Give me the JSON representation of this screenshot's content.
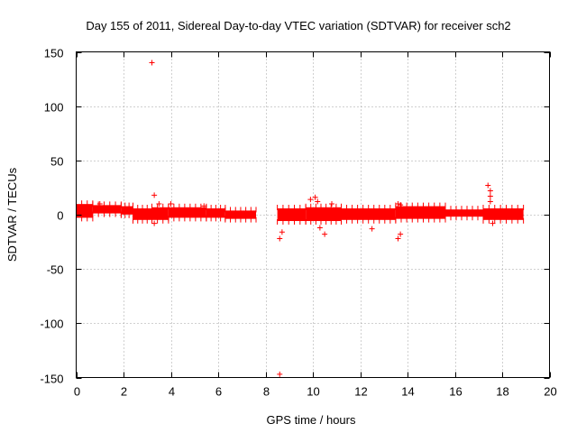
{
  "chart_data": {
    "type": "scatter",
    "title": "Day 155 of 2011, Sidereal Day-to-day VTEC variation (SDTVAR) for receiver sch2",
    "xlabel": "GPS time / hours",
    "ylabel": "SDTVAR / TECUs",
    "xlim": [
      0,
      20
    ],
    "ylim": [
      -150,
      150
    ],
    "xticks": [
      "0",
      "2",
      "4",
      "6",
      "8",
      "10",
      "12",
      "14",
      "16",
      "18",
      "20"
    ],
    "yticks": [
      "150",
      "100",
      "50",
      "0",
      "-50",
      "-100",
      "-150"
    ],
    "grid": true,
    "marker": "plus",
    "series_color": "#ff0000",
    "bands": [
      {
        "x_start": 0.0,
        "x_end": 0.7,
        "y_low": -2,
        "y_high": 9
      },
      {
        "x_start": 0.7,
        "x_end": 1.9,
        "y_low": 2,
        "y_high": 8
      },
      {
        "x_start": 1.9,
        "x_end": 2.4,
        "y_low": 1,
        "y_high": 7
      },
      {
        "x_start": 2.4,
        "x_end": 3.2,
        "y_low": -4,
        "y_high": 5
      },
      {
        "x_start": 3.2,
        "x_end": 3.9,
        "y_low": -4,
        "y_high": 6
      },
      {
        "x_start": 3.9,
        "x_end": 5.5,
        "y_low": -2,
        "y_high": 6
      },
      {
        "x_start": 5.5,
        "x_end": 6.3,
        "y_low": -2,
        "y_high": 5
      },
      {
        "x_start": 6.3,
        "x_end": 7.6,
        "y_low": -3,
        "y_high": 3
      },
      {
        "x_start": 8.5,
        "x_end": 9.7,
        "y_low": -5,
        "y_high": 5
      },
      {
        "x_start": 9.7,
        "x_end": 11.2,
        "y_low": -5,
        "y_high": 6
      },
      {
        "x_start": 11.2,
        "x_end": 13.5,
        "y_low": -4,
        "y_high": 5
      },
      {
        "x_start": 13.5,
        "x_end": 15.6,
        "y_low": -3,
        "y_high": 7
      },
      {
        "x_start": 15.6,
        "x_end": 17.2,
        "y_low": -1,
        "y_high": 4
      },
      {
        "x_start": 17.2,
        "x_end": 18.9,
        "y_low": -4,
        "y_high": 5
      }
    ],
    "outliers": [
      {
        "x": 3.2,
        "y": 140
      },
      {
        "x": 8.6,
        "y": -147
      },
      {
        "x": 3.3,
        "y": 18
      },
      {
        "x": 3.3,
        "y": -8
      },
      {
        "x": 3.5,
        "y": 10
      },
      {
        "x": 4.0,
        "y": 10
      },
      {
        "x": 1.0,
        "y": 10
      },
      {
        "x": 8.6,
        "y": -22
      },
      {
        "x": 8.7,
        "y": -16
      },
      {
        "x": 9.9,
        "y": 14
      },
      {
        "x": 10.1,
        "y": 16
      },
      {
        "x": 10.2,
        "y": 12
      },
      {
        "x": 10.3,
        "y": -12
      },
      {
        "x": 10.5,
        "y": -18
      },
      {
        "x": 10.8,
        "y": 10
      },
      {
        "x": 12.5,
        "y": -13
      },
      {
        "x": 13.6,
        "y": 10
      },
      {
        "x": 13.6,
        "y": -22
      },
      {
        "x": 13.7,
        "y": -18
      },
      {
        "x": 13.7,
        "y": 9
      },
      {
        "x": 17.4,
        "y": 27
      },
      {
        "x": 17.5,
        "y": 22
      },
      {
        "x": 17.5,
        "y": 17
      },
      {
        "x": 17.5,
        "y": 12
      },
      {
        "x": 17.6,
        "y": -8
      },
      {
        "x": 5.4,
        "y": 8
      }
    ]
  }
}
